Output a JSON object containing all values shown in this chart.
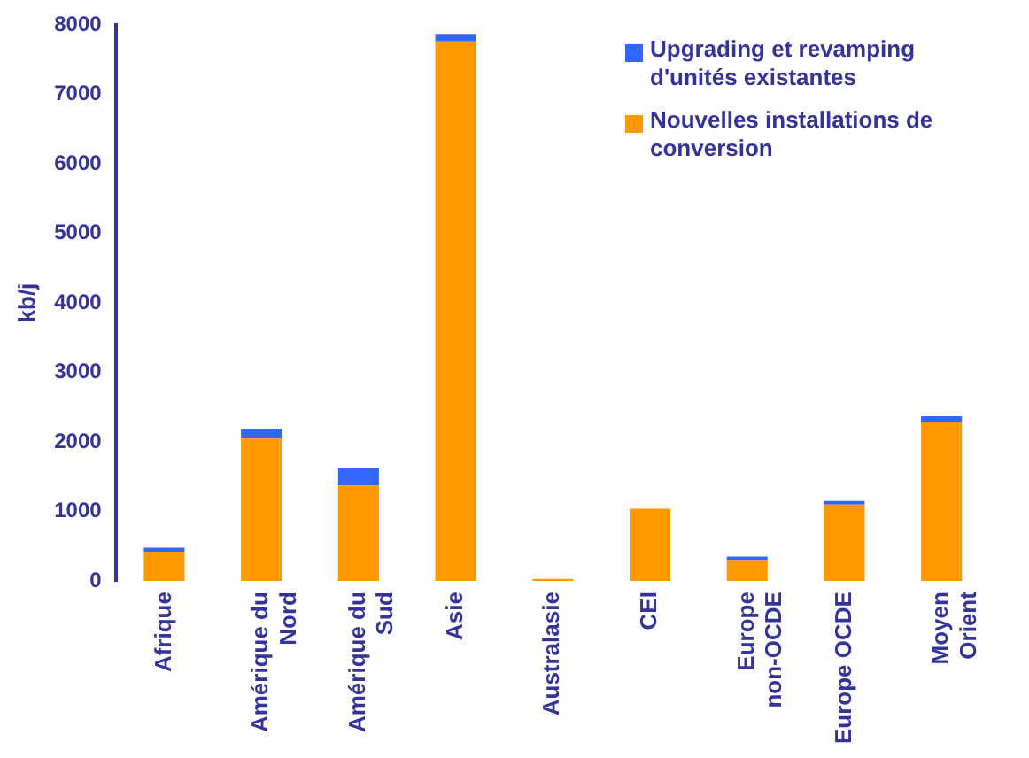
{
  "chart_data": {
    "type": "bar",
    "stacked": true,
    "ylabel": "kb/j",
    "categories": [
      "Afrique",
      "Amérique du Nord",
      "Amérique du Sud",
      "Asie",
      "Australasie",
      "CEI",
      "Europe non-OCDE",
      "Europe OCDE",
      "Moyen Orient"
    ],
    "series": [
      {
        "name": "Nouvelles installations de conversion",
        "color": "#ff9900",
        "values": [
          420,
          2050,
          1370,
          7760,
          30,
          1040,
          300,
          1100,
          2290
        ]
      },
      {
        "name": "Upgrading et revamping d'unités existantes",
        "color": "#3366ff",
        "values": [
          60,
          140,
          260,
          110,
          0,
          0,
          50,
          50,
          80
        ]
      }
    ],
    "ylim": [
      0,
      8000
    ],
    "yticks": [
      0,
      1000,
      2000,
      3000,
      4000,
      5000,
      6000,
      7000,
      8000
    ],
    "grid": false,
    "legend": "top right"
  }
}
